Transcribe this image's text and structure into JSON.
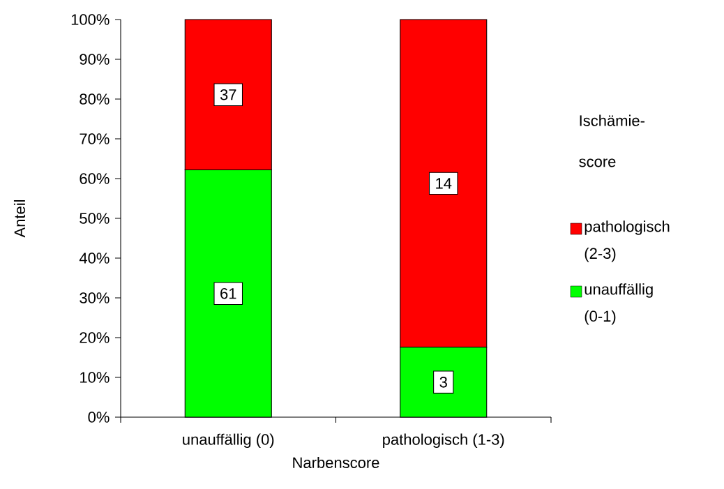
{
  "chart_data": {
    "type": "bar",
    "stacked": true,
    "categories": [
      "unauffällig (0)",
      "pathologisch (1-3)"
    ],
    "xlabel": "Narbenscore",
    "ylabel": "Anteil",
    "legend_title": "Ischämie-score",
    "legend": "right",
    "ylim": [
      0,
      100
    ],
    "yticks": [
      {
        "value": 0,
        "label": "0%"
      },
      {
        "value": 10,
        "label": "10%"
      },
      {
        "value": 20,
        "label": "20%"
      },
      {
        "value": 30,
        "label": "30%"
      },
      {
        "value": 40,
        "label": "40%"
      },
      {
        "value": 50,
        "label": "50%"
      },
      {
        "value": 60,
        "label": "60%"
      },
      {
        "value": 70,
        "label": "70%"
      },
      {
        "value": 80,
        "label": "80%"
      },
      {
        "value": 90,
        "label": "90%"
      },
      {
        "value": 100,
        "label": "100%"
      }
    ],
    "series": [
      {
        "name": "unauffällig (0-1)",
        "color": "#00ff00",
        "values": [
          62.2,
          17.6
        ]
      },
      {
        "name": "pathologisch (2-3)",
        "color": "#ff0000",
        "values": [
          37.8,
          82.4
        ]
      }
    ],
    "annotations": [
      {
        "text": "61",
        "x": "unauffällig (0)",
        "y": 31.1
      },
      {
        "text": "37",
        "x": "unauffällig (0)",
        "y": 81.1
      },
      {
        "text": "3",
        "x": "pathologisch (1-3)",
        "y": 8.8
      },
      {
        "text": "14",
        "x": "pathologisch (1-3)",
        "y": 58.8
      }
    ]
  }
}
